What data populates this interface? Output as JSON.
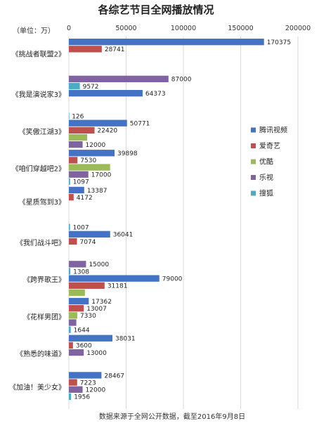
{
  "chart_data": {
    "type": "bar",
    "orientation": "horizontal",
    "title": "各综艺节目全网播放情况",
    "unit_label": "（单位：万）",
    "footnote": "数据来源于全网公开数据，截至2016年9月8日",
    "xlim": [
      0,
      200000
    ],
    "x_ticks": [
      "0",
      "50000",
      "100000",
      "150000",
      "200000"
    ],
    "grid": true,
    "legend_position": "right",
    "series": [
      {
        "name": "腾讯视频",
        "color": "#4472C4"
      },
      {
        "name": "爱奇艺",
        "color": "#C0504D"
      },
      {
        "name": "优酷",
        "color": "#9BBB59"
      },
      {
        "name": "乐视",
        "color": "#8064A2"
      },
      {
        "name": "搜狐",
        "color": "#4BACC6"
      }
    ],
    "programs": [
      {
        "name": "《挑战者联盟2》",
        "bars": [
          {
            "series": 0,
            "value": 170375,
            "label": "170375"
          },
          {
            "series": 1,
            "value": 28741,
            "label": "28741"
          }
        ]
      },
      {
        "name": "《我是演说家3》",
        "bars": [
          {
            "series": 3,
            "value": 87000,
            "label": "87000"
          },
          {
            "series": 4,
            "value": 9572,
            "label": "9572"
          },
          {
            "series": 0,
            "value": 64373,
            "label": "64373"
          }
        ]
      },
      {
        "name": "《笑傲江湖3》",
        "bars": [
          {
            "series": 4,
            "value": 126,
            "label": "126"
          },
          {
            "series": 0,
            "value": 50771,
            "label": "50771"
          },
          {
            "series": 1,
            "value": 22420,
            "label": "22420"
          },
          {
            "series": 2,
            "value": 16000,
            "label": ""
          },
          {
            "series": 3,
            "value": 12000,
            "label": "12000"
          }
        ]
      },
      {
        "name": "《咱们穿越吧2》",
        "bars": [
          {
            "series": 0,
            "value": 39898,
            "label": "39898"
          },
          {
            "series": 1,
            "value": 7530,
            "label": "7530"
          },
          {
            "series": 2,
            "value": 36000,
            "label": ""
          },
          {
            "series": 3,
            "value": 17000,
            "label": "17000"
          },
          {
            "series": 4,
            "value": 1097,
            "label": "1097"
          }
        ]
      },
      {
        "name": "《星质驾到3》",
        "bars": [
          {
            "series": 0,
            "value": 13387,
            "label": "13387"
          },
          {
            "series": 1,
            "value": 4172,
            "label": "4172"
          }
        ]
      },
      {
        "name": "《我们战斗吧》",
        "bars": [
          {
            "series": 4,
            "value": 1007,
            "label": "1007"
          },
          {
            "series": 0,
            "value": 36041,
            "label": "36041"
          },
          {
            "series": 1,
            "value": 7074,
            "label": "7074"
          }
        ]
      },
      {
        "name": "《跨界歌王》",
        "bars": [
          {
            "series": 3,
            "value": 15000,
            "label": "15000"
          },
          {
            "series": 4,
            "value": 1308,
            "label": "1308"
          },
          {
            "series": 0,
            "value": 79000,
            "label": "79000"
          },
          {
            "series": 1,
            "value": 31181,
            "label": "31181"
          },
          {
            "series": 2,
            "value": 14000,
            "label": ""
          }
        ]
      },
      {
        "name": "《花样男团》",
        "bars": [
          {
            "series": 0,
            "value": 17362,
            "label": "17362"
          },
          {
            "series": 1,
            "value": 13007,
            "label": "13007"
          },
          {
            "series": 2,
            "value": 7330,
            "label": "7330"
          },
          {
            "series": 3,
            "value": 6500,
            "label": ""
          },
          {
            "series": 4,
            "value": 1644,
            "label": "1644"
          }
        ]
      },
      {
        "name": "《熟悉的味道》",
        "bars": [
          {
            "series": 0,
            "value": 38031,
            "label": "38031"
          },
          {
            "series": 1,
            "value": 3600,
            "label": "3600"
          },
          {
            "series": 3,
            "value": 13000,
            "label": "13000"
          }
        ]
      },
      {
        "name": "《加油！美少女》",
        "bars": [
          {
            "series": 0,
            "value": 28467,
            "label": "28467"
          },
          {
            "series": 1,
            "value": 7223,
            "label": "7223"
          },
          {
            "series": 3,
            "value": 12000,
            "label": "12000"
          },
          {
            "series": 4,
            "value": 1956,
            "label": "1956"
          }
        ]
      }
    ]
  }
}
